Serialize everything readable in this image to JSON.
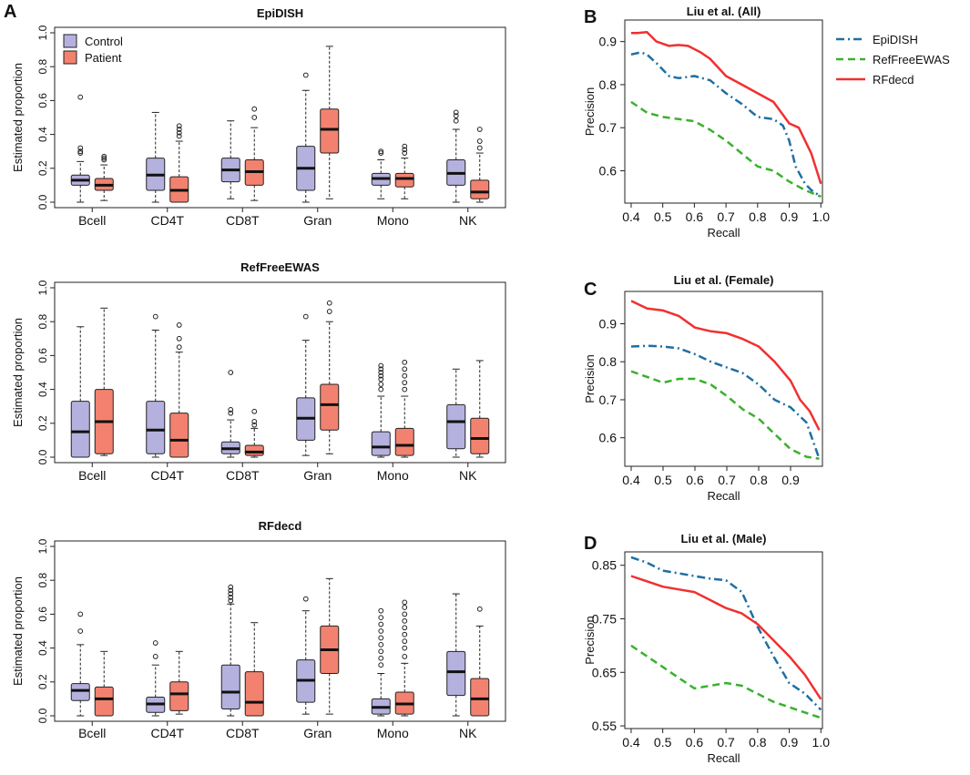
{
  "colors": {
    "control": "#b5b1de",
    "patient": "#f2826f",
    "epidish": "#1f6fa3",
    "reffree": "#3ab02f",
    "rfdecd": "#f03030"
  },
  "panel_letters": {
    "A": "A",
    "B": "B",
    "C": "C",
    "D": "D"
  },
  "legend_boxes": {
    "control": "Control",
    "patient": "Patient"
  },
  "legend_lines": {
    "epidish": "EpiDISH",
    "reffree": "RefFreeEWAS",
    "rfdecd": "RFdecd"
  },
  "chart_data": [
    {
      "type": "box",
      "title": "EpiDISH",
      "ylabel": "Estimated proportion",
      "ylim": [
        0,
        1
      ],
      "yticks": [
        "0.0",
        "0.2",
        "0.4",
        "0.6",
        "0.8",
        "1.0"
      ],
      "categories": [
        "Bcell",
        "CD4T",
        "CD8T",
        "Gran",
        "Mono",
        "NK"
      ],
      "series": [
        {
          "name": "Control",
          "boxes": [
            {
              "wlo": 0.0,
              "q1": 0.1,
              "med": 0.13,
              "q3": 0.16,
              "whi": 0.24,
              "out": [
                0.29,
                0.3,
                0.32,
                0.62
              ]
            },
            {
              "wlo": 0.0,
              "q1": 0.07,
              "med": 0.16,
              "q3": 0.26,
              "whi": 0.53,
              "out": []
            },
            {
              "wlo": 0.02,
              "q1": 0.12,
              "med": 0.19,
              "q3": 0.26,
              "whi": 0.48,
              "out": []
            },
            {
              "wlo": 0.0,
              "q1": 0.07,
              "med": 0.2,
              "q3": 0.33,
              "whi": 0.66,
              "out": [
                0.75
              ]
            },
            {
              "wlo": 0.02,
              "q1": 0.1,
              "med": 0.14,
              "q3": 0.17,
              "whi": 0.25,
              "out": [
                0.29,
                0.3
              ]
            },
            {
              "wlo": 0.0,
              "q1": 0.1,
              "med": 0.17,
              "q3": 0.25,
              "whi": 0.43,
              "out": [
                0.48,
                0.51,
                0.53
              ]
            }
          ]
        },
        {
          "name": "Patient",
          "boxes": [
            {
              "wlo": 0.01,
              "q1": 0.07,
              "med": 0.1,
              "q3": 0.14,
              "whi": 0.22,
              "out": [
                0.25,
                0.26,
                0.27
              ]
            },
            {
              "wlo": 0.0,
              "q1": 0.0,
              "med": 0.07,
              "q3": 0.15,
              "whi": 0.36,
              "out": [
                0.39,
                0.41,
                0.43,
                0.45
              ]
            },
            {
              "wlo": 0.01,
              "q1": 0.1,
              "med": 0.18,
              "q3": 0.25,
              "whi": 0.44,
              "out": [
                0.5,
                0.55
              ]
            },
            {
              "wlo": 0.02,
              "q1": 0.29,
              "med": 0.43,
              "q3": 0.55,
              "whi": 0.92,
              "out": []
            },
            {
              "wlo": 0.02,
              "q1": 0.09,
              "med": 0.14,
              "q3": 0.17,
              "whi": 0.26,
              "out": [
                0.29,
                0.31,
                0.33
              ]
            },
            {
              "wlo": 0.0,
              "q1": 0.02,
              "med": 0.06,
              "q3": 0.13,
              "whi": 0.29,
              "out": [
                0.32,
                0.36,
                0.43
              ]
            }
          ]
        }
      ]
    },
    {
      "type": "box",
      "title": "RefFreeEWAS",
      "ylabel": "Estimated proportion",
      "ylim": [
        0,
        1
      ],
      "yticks": [
        "0.0",
        "0.2",
        "0.4",
        "0.6",
        "0.8",
        "1.0"
      ],
      "categories": [
        "Bcell",
        "CD4T",
        "CD8T",
        "Gran",
        "Mono",
        "NK"
      ],
      "series": [
        {
          "name": "Control",
          "boxes": [
            {
              "wlo": 0.0,
              "q1": 0.0,
              "med": 0.15,
              "q3": 0.33,
              "whi": 0.77,
              "out": []
            },
            {
              "wlo": 0.0,
              "q1": 0.02,
              "med": 0.16,
              "q3": 0.33,
              "whi": 0.75,
              "out": [
                0.83
              ]
            },
            {
              "wlo": 0.0,
              "q1": 0.02,
              "med": 0.05,
              "q3": 0.09,
              "whi": 0.22,
              "out": [
                0.26,
                0.28,
                0.5
              ]
            },
            {
              "wlo": 0.01,
              "q1": 0.1,
              "med": 0.23,
              "q3": 0.35,
              "whi": 0.69,
              "out": [
                0.83
              ]
            },
            {
              "wlo": 0.0,
              "q1": 0.01,
              "med": 0.06,
              "q3": 0.15,
              "whi": 0.36,
              "out": [
                0.4,
                0.43,
                0.46,
                0.48,
                0.5,
                0.52,
                0.54
              ]
            },
            {
              "wlo": 0.0,
              "q1": 0.05,
              "med": 0.21,
              "q3": 0.31,
              "whi": 0.52,
              "out": []
            }
          ]
        },
        {
          "name": "Patient",
          "boxes": [
            {
              "wlo": 0.01,
              "q1": 0.02,
              "med": 0.21,
              "q3": 0.4,
              "whi": 0.88,
              "out": []
            },
            {
              "wlo": 0.0,
              "q1": 0.0,
              "med": 0.1,
              "q3": 0.26,
              "whi": 0.62,
              "out": [
                0.65,
                0.7,
                0.78
              ]
            },
            {
              "wlo": 0.0,
              "q1": 0.01,
              "med": 0.03,
              "q3": 0.07,
              "whi": 0.17,
              "out": [
                0.19,
                0.21,
                0.27
              ]
            },
            {
              "wlo": 0.02,
              "q1": 0.16,
              "med": 0.31,
              "q3": 0.43,
              "whi": 0.8,
              "out": [
                0.86,
                0.91
              ]
            },
            {
              "wlo": 0.0,
              "q1": 0.01,
              "med": 0.07,
              "q3": 0.17,
              "whi": 0.36,
              "out": [
                0.4,
                0.44,
                0.48,
                0.52,
                0.56
              ]
            },
            {
              "wlo": 0.0,
              "q1": 0.02,
              "med": 0.11,
              "q3": 0.23,
              "whi": 0.57,
              "out": []
            }
          ]
        }
      ]
    },
    {
      "type": "box",
      "title": "RFdecd",
      "ylabel": "Estimated proportion",
      "ylim": [
        0,
        1
      ],
      "yticks": [
        "0.0",
        "0.2",
        "0.4",
        "0.6",
        "0.8",
        "1.0"
      ],
      "categories": [
        "Bcell",
        "CD4T",
        "CD8T",
        "Gran",
        "Mono",
        "NK"
      ],
      "series": [
        {
          "name": "Control",
          "boxes": [
            {
              "wlo": 0.0,
              "q1": 0.09,
              "med": 0.15,
              "q3": 0.19,
              "whi": 0.42,
              "out": [
                0.5,
                0.6
              ]
            },
            {
              "wlo": 0.0,
              "q1": 0.02,
              "med": 0.07,
              "q3": 0.11,
              "whi": 0.3,
              "out": [
                0.35,
                0.43
              ]
            },
            {
              "wlo": 0.0,
              "q1": 0.04,
              "med": 0.14,
              "q3": 0.3,
              "whi": 0.66,
              "out": [
                0.68,
                0.7,
                0.72,
                0.74,
                0.76
              ]
            },
            {
              "wlo": 0.01,
              "q1": 0.08,
              "med": 0.21,
              "q3": 0.33,
              "whi": 0.62,
              "out": [
                0.69
              ]
            },
            {
              "wlo": 0.0,
              "q1": 0.01,
              "med": 0.05,
              "q3": 0.1,
              "whi": 0.25,
              "out": [
                0.3,
                0.34,
                0.38,
                0.42,
                0.46,
                0.5,
                0.54,
                0.58,
                0.62
              ]
            },
            {
              "wlo": 0.0,
              "q1": 0.12,
              "med": 0.26,
              "q3": 0.38,
              "whi": 0.72,
              "out": []
            }
          ]
        },
        {
          "name": "Patient",
          "boxes": [
            {
              "wlo": 0.0,
              "q1": 0.0,
              "med": 0.1,
              "q3": 0.17,
              "whi": 0.38,
              "out": []
            },
            {
              "wlo": 0.01,
              "q1": 0.03,
              "med": 0.13,
              "q3": 0.2,
              "whi": 0.38,
              "out": []
            },
            {
              "wlo": 0.0,
              "q1": 0.0,
              "med": 0.08,
              "q3": 0.26,
              "whi": 0.55,
              "out": []
            },
            {
              "wlo": 0.01,
              "q1": 0.25,
              "med": 0.39,
              "q3": 0.53,
              "whi": 0.81,
              "out": []
            },
            {
              "wlo": 0.0,
              "q1": 0.01,
              "med": 0.07,
              "q3": 0.14,
              "whi": 0.31,
              "out": [
                0.35,
                0.4,
                0.44,
                0.48,
                0.52,
                0.56,
                0.6,
                0.64,
                0.67
              ]
            },
            {
              "wlo": 0.0,
              "q1": 0.0,
              "med": 0.1,
              "q3": 0.22,
              "whi": 0.53,
              "out": [
                0.63
              ]
            }
          ]
        }
      ]
    },
    {
      "type": "line",
      "title": "Liu et al. (All)",
      "xlabel": "Recall",
      "ylabel": "Precision",
      "xlim": [
        0.38,
        1.005
      ],
      "ylim": [
        0.525,
        0.95
      ],
      "xticks": [
        0.4,
        0.5,
        0.6,
        0.7,
        0.8,
        0.9,
        1.0
      ],
      "xtick_labels": [
        "0.4",
        "0.5",
        "0.6",
        "0.7",
        "0.8",
        "0.9",
        "1.0"
      ],
      "yticks": [
        0.6,
        0.7,
        0.8,
        0.9
      ],
      "ytick_labels": [
        "0.6",
        "0.7",
        "0.8",
        "0.9"
      ],
      "series": [
        {
          "name": "EpiDISH",
          "x": [
            0.4,
            0.43,
            0.45,
            0.48,
            0.52,
            0.55,
            0.6,
            0.65,
            0.7,
            0.75,
            0.8,
            0.85,
            0.88,
            0.9,
            0.92,
            0.95,
            0.97,
            1.0
          ],
          "y": [
            0.87,
            0.875,
            0.87,
            0.85,
            0.82,
            0.815,
            0.82,
            0.81,
            0.78,
            0.755,
            0.725,
            0.72,
            0.705,
            0.67,
            0.61,
            0.57,
            0.555,
            0.54
          ]
        },
        {
          "name": "RefFreeEWAS",
          "x": [
            0.4,
            0.45,
            0.5,
            0.55,
            0.6,
            0.65,
            0.7,
            0.75,
            0.8,
            0.85,
            0.9,
            0.95,
            1.0
          ],
          "y": [
            0.76,
            0.735,
            0.725,
            0.72,
            0.715,
            0.695,
            0.67,
            0.64,
            0.61,
            0.6,
            0.575,
            0.555,
            0.54
          ]
        },
        {
          "name": "RFdecd",
          "x": [
            0.4,
            0.42,
            0.45,
            0.48,
            0.52,
            0.55,
            0.58,
            0.62,
            0.65,
            0.7,
            0.75,
            0.8,
            0.85,
            0.88,
            0.9,
            0.93,
            0.95,
            0.97,
            1.0
          ],
          "y": [
            0.92,
            0.92,
            0.922,
            0.9,
            0.89,
            0.892,
            0.89,
            0.875,
            0.86,
            0.82,
            0.8,
            0.78,
            0.76,
            0.73,
            0.71,
            0.7,
            0.67,
            0.64,
            0.57
          ]
        }
      ]
    },
    {
      "type": "line",
      "title": "Liu et al. (Female)",
      "xlabel": "Recall",
      "ylabel": "Precision",
      "xlim": [
        0.38,
        1.0
      ],
      "ylim": [
        0.525,
        0.985
      ],
      "xticks": [
        0.4,
        0.5,
        0.6,
        0.7,
        0.8,
        0.9
      ],
      "xtick_labels": [
        "0.4",
        "0.5",
        "0.6",
        "0.7",
        "0.8",
        "0.9"
      ],
      "yticks": [
        0.6,
        0.7,
        0.8,
        0.9
      ],
      "ytick_labels": [
        "0.6",
        "0.7",
        "0.8",
        "0.9"
      ],
      "series": [
        {
          "name": "EpiDISH",
          "x": [
            0.4,
            0.45,
            0.5,
            0.55,
            0.6,
            0.65,
            0.7,
            0.75,
            0.8,
            0.85,
            0.9,
            0.95,
            0.99
          ],
          "y": [
            0.84,
            0.842,
            0.84,
            0.835,
            0.82,
            0.8,
            0.785,
            0.77,
            0.74,
            0.7,
            0.68,
            0.64,
            0.545
          ]
        },
        {
          "name": "RefFreeEWAS",
          "x": [
            0.4,
            0.45,
            0.5,
            0.55,
            0.6,
            0.65,
            0.7,
            0.75,
            0.8,
            0.85,
            0.9,
            0.95,
            0.99
          ],
          "y": [
            0.775,
            0.76,
            0.745,
            0.755,
            0.755,
            0.74,
            0.71,
            0.675,
            0.65,
            0.61,
            0.57,
            0.55,
            0.545
          ]
        },
        {
          "name": "RFdecd",
          "x": [
            0.4,
            0.45,
            0.5,
            0.55,
            0.6,
            0.65,
            0.7,
            0.75,
            0.8,
            0.85,
            0.9,
            0.93,
            0.96,
            0.99
          ],
          "y": [
            0.96,
            0.94,
            0.935,
            0.92,
            0.89,
            0.88,
            0.875,
            0.86,
            0.84,
            0.8,
            0.75,
            0.7,
            0.67,
            0.62
          ]
        }
      ]
    },
    {
      "type": "line",
      "title": "Liu et al. (Male)",
      "xlabel": "Recall",
      "ylabel": "Precision",
      "xlim": [
        0.38,
        1.005
      ],
      "ylim": [
        0.545,
        0.875
      ],
      "xticks": [
        0.4,
        0.5,
        0.6,
        0.7,
        0.8,
        0.9,
        1.0
      ],
      "xtick_labels": [
        "0.4",
        "0.5",
        "0.6",
        "0.7",
        "0.8",
        "0.9",
        "1.0"
      ],
      "yticks": [
        0.55,
        0.65,
        0.75,
        0.85
      ],
      "ytick_labels": [
        "0.55",
        "0.65",
        "0.75",
        "0.85"
      ],
      "series": [
        {
          "name": "EpiDISH",
          "x": [
            0.4,
            0.45,
            0.5,
            0.55,
            0.6,
            0.65,
            0.7,
            0.75,
            0.8,
            0.85,
            0.9,
            0.95,
            1.0
          ],
          "y": [
            0.865,
            0.855,
            0.84,
            0.835,
            0.83,
            0.825,
            0.822,
            0.8,
            0.735,
            0.68,
            0.63,
            0.61,
            0.58
          ]
        },
        {
          "name": "RefFreeEWAS",
          "x": [
            0.4,
            0.45,
            0.5,
            0.55,
            0.6,
            0.65,
            0.7,
            0.75,
            0.8,
            0.85,
            0.9,
            0.95,
            1.0
          ],
          "y": [
            0.7,
            0.68,
            0.66,
            0.64,
            0.62,
            0.625,
            0.63,
            0.625,
            0.61,
            0.595,
            0.585,
            0.575,
            0.565
          ]
        },
        {
          "name": "RFdecd",
          "x": [
            0.4,
            0.45,
            0.5,
            0.55,
            0.6,
            0.65,
            0.7,
            0.75,
            0.8,
            0.85,
            0.9,
            0.95,
            1.0
          ],
          "y": [
            0.83,
            0.82,
            0.81,
            0.805,
            0.8,
            0.785,
            0.77,
            0.76,
            0.74,
            0.71,
            0.68,
            0.645,
            0.6
          ]
        }
      ]
    }
  ]
}
